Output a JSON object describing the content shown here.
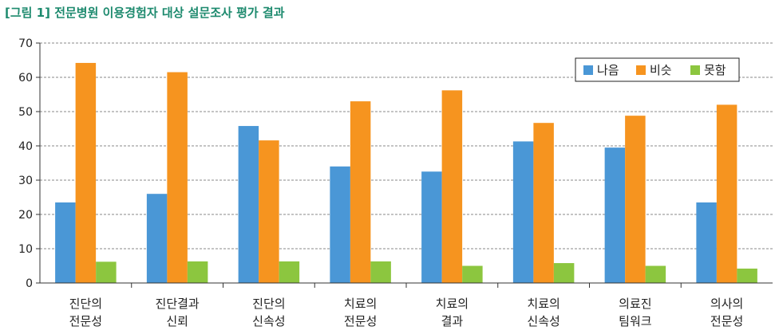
{
  "title": "[그림 1] 전문병원 이용경험자 대상 설문조사 평가 결과",
  "chart_data": {
    "type": "bar",
    "categories": [
      [
        "진단의",
        "전문성"
      ],
      [
        "진단결과",
        "신뢰"
      ],
      [
        "진단의",
        "신속성"
      ],
      [
        "치료의",
        "전문성"
      ],
      [
        "치료의",
        "결과"
      ],
      [
        "치료의",
        "신속성"
      ],
      [
        "의료진",
        "팀워크"
      ],
      [
        "의사의",
        "전문성"
      ]
    ],
    "series": [
      {
        "name": "나음",
        "color": "#4a97d6",
        "values": [
          23.5,
          26.0,
          45.8,
          34.0,
          32.5,
          41.3,
          39.5,
          23.5
        ]
      },
      {
        "name": "비슷",
        "color": "#f6941f",
        "values": [
          64.2,
          61.5,
          41.6,
          53.0,
          56.2,
          46.7,
          48.8,
          52.0
        ]
      },
      {
        "name": "못함",
        "color": "#8cc63f",
        "values": [
          6.2,
          6.3,
          6.3,
          6.3,
          5.0,
          5.8,
          5.0,
          4.2
        ]
      }
    ],
    "yticks": [
      "0",
      "10",
      "20",
      "30",
      "40",
      "50",
      "60",
      "70"
    ],
    "ylim": [
      0,
      70
    ],
    "grid": true,
    "legend_position": "top-right"
  }
}
